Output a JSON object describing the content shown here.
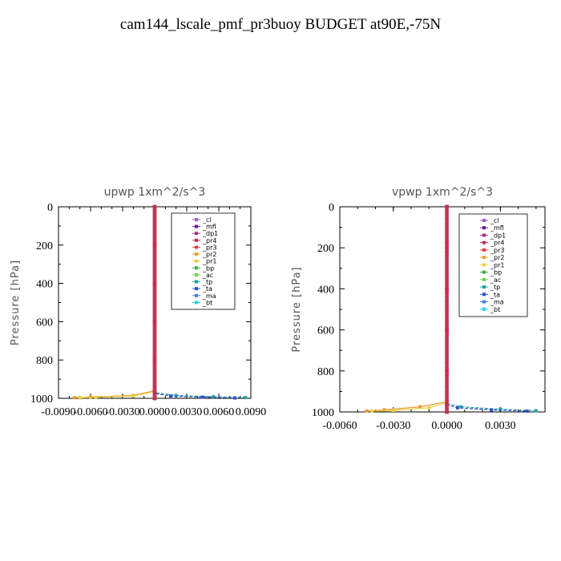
{
  "title": "cam144_lscale_pmf_pr3buoy  BUDGET at90E,-75N",
  "colors": {
    "_cl": "#9a62c8",
    "_mfl": "#6a1a8a",
    "_dp1": "#a8307a",
    "_pr4": "#b83050",
    "_pr3": "#e04040",
    "_pr2": "#f09a30",
    "_pr1": "#e8d040",
    "_bp": "#40b040",
    "_ac": "#70d050",
    "_tp": "#20a0a0",
    "_ta": "#3050d0",
    "_ma": "#4080e0",
    "_bt": "#20d0f0"
  },
  "chart_data": [
    {
      "type": "line",
      "title": "upwp   1xm^2/s^3",
      "ylabel": "Pressure  [hPa]",
      "xlim": [
        -0.009,
        0.009
      ],
      "ylim": [
        1000,
        0
      ],
      "xticks": [
        -0.009,
        -0.006,
        -0.003,
        0.0,
        0.003,
        0.006,
        0.009
      ],
      "xtick_labels": [
        "-0.0090",
        "-0.0060",
        "-0.0030",
        "0.0000",
        "0.0030",
        "0.0060",
        "0.0090"
      ],
      "yticks": [
        0,
        200,
        400,
        600,
        800,
        1000
      ],
      "ytick_labels": [
        "0",
        "200",
        "400",
        "600",
        "800",
        "1000"
      ],
      "legend": {
        "position": "top-right",
        "entries": [
          "_cl",
          "_mfl",
          "_dp1",
          "_pr4",
          "_pr3",
          "_pr2",
          "_pr1",
          "_bp",
          "_ac",
          "_tp",
          "_ta",
          "_ma",
          "_bt"
        ]
      },
      "series": [
        {
          "name": "_cl",
          "x": [
            0,
            0,
            0,
            0,
            0,
            0
          ],
          "y": [
            0,
            200,
            400,
            600,
            800,
            1000
          ]
        },
        {
          "name": "_mfl",
          "x": [
            0,
            0,
            0,
            0,
            0,
            0
          ],
          "y": [
            0,
            200,
            400,
            600,
            800,
            1000
          ]
        },
        {
          "name": "_dp1",
          "x": [
            0,
            0,
            0,
            0,
            0,
            0
          ],
          "y": [
            0,
            200,
            400,
            600,
            800,
            1000
          ]
        },
        {
          "name": "_pr4",
          "x": [
            0,
            0,
            0,
            0,
            0,
            0
          ],
          "y": [
            0,
            200,
            400,
            600,
            800,
            1000
          ]
        },
        {
          "name": "_pr3",
          "x": [
            0,
            0,
            0,
            0,
            0,
            0
          ],
          "y": [
            0,
            200,
            400,
            600,
            800,
            1000
          ]
        },
        {
          "name": "_pr2",
          "x": [
            0,
            0,
            -0.002,
            -0.006,
            -0.0075
          ],
          "y": [
            0,
            960,
            985,
            993,
            997
          ]
        },
        {
          "name": "_pr1",
          "x": [
            0,
            0,
            -0.002,
            -0.0055,
            -0.007
          ],
          "y": [
            0,
            965,
            988,
            995,
            998
          ]
        },
        {
          "name": "_tp",
          "x": [
            0,
            0,
            0.002,
            0.0055,
            0.0085
          ],
          "y": [
            0,
            970,
            985,
            992,
            996
          ]
        },
        {
          "name": "_ta",
          "x": [
            0,
            0,
            0.0015,
            0.0045,
            0.0075
          ],
          "y": [
            0,
            975,
            988,
            994,
            998
          ]
        }
      ]
    },
    {
      "type": "line",
      "title": "vpwp   1xm^2/s^3",
      "ylabel": "Pressure  [hPa]",
      "xlim": [
        -0.006,
        0.0055
      ],
      "ylim": [
        1000,
        0
      ],
      "xticks": [
        -0.006,
        -0.003,
        0.0,
        0.003
      ],
      "xtick_labels": [
        "-0.0060",
        "-0.0030",
        "0.0000",
        "0.0030"
      ],
      "yticks": [
        0,
        200,
        400,
        600,
        800,
        1000
      ],
      "ytick_labels": [
        "0",
        "200",
        "400",
        "600",
        "800",
        "1000"
      ],
      "legend": {
        "position": "top-right",
        "entries": [
          "_cl",
          "_mfl",
          "_dp1",
          "_pr4",
          "_pr3",
          "_pr2",
          "_pr1",
          "_bp",
          "_ac",
          "_tp",
          "_ta",
          "_ma",
          "_bt"
        ]
      },
      "series": [
        {
          "name": "_cl",
          "x": [
            0,
            0,
            0,
            0,
            0,
            0
          ],
          "y": [
            0,
            200,
            400,
            600,
            800,
            1000
          ]
        },
        {
          "name": "_mfl",
          "x": [
            0,
            0,
            0,
            0,
            0,
            0
          ],
          "y": [
            0,
            200,
            400,
            600,
            800,
            1000
          ]
        },
        {
          "name": "_dp1",
          "x": [
            0,
            0,
            0,
            0,
            0,
            0
          ],
          "y": [
            0,
            200,
            400,
            600,
            800,
            1000
          ]
        },
        {
          "name": "_pr4",
          "x": [
            0,
            0,
            0,
            0,
            0,
            0
          ],
          "y": [
            0,
            200,
            400,
            600,
            800,
            1000
          ]
        },
        {
          "name": "_pr3",
          "x": [
            0,
            0,
            0,
            0,
            0,
            0
          ],
          "y": [
            0,
            200,
            400,
            600,
            800,
            1000
          ]
        },
        {
          "name": "_pr2",
          "x": [
            0,
            0,
            -0.0015,
            -0.0035,
            -0.0045
          ],
          "y": [
            0,
            950,
            975,
            990,
            995
          ]
        },
        {
          "name": "_pr1",
          "x": [
            0,
            0,
            -0.001,
            -0.003,
            -0.0042
          ],
          "y": [
            0,
            955,
            980,
            992,
            996
          ]
        },
        {
          "name": "_tp",
          "x": [
            0,
            0,
            0.0008,
            0.003,
            0.005
          ],
          "y": [
            0,
            960,
            975,
            987,
            994
          ]
        },
        {
          "name": "_ta",
          "x": [
            0,
            0,
            0.0006,
            0.0025,
            0.0045
          ],
          "y": [
            0,
            965,
            980,
            990,
            996
          ]
        }
      ]
    }
  ]
}
